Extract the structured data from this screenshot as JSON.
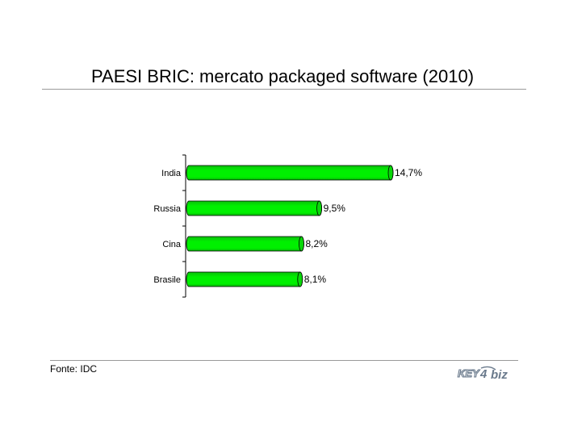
{
  "title": "PAESI BRIC: mercato packaged software (2010)",
  "source": "Fonte: IDC",
  "logo_text": "KEY4biz",
  "colors": {
    "bar_fill": "#00f000",
    "bar_outline": "#000000",
    "rule": "#9a9a9a",
    "logo": "#6a7a8c"
  },
  "chart_data": {
    "type": "bar",
    "orientation": "horizontal",
    "style": "3d-cylinder",
    "categories": [
      "India",
      "Russia",
      "Cina",
      "Brasile"
    ],
    "values": [
      14.7,
      9.5,
      8.2,
      8.1
    ],
    "data_labels": [
      "14,7%",
      "9,5%",
      "8,2%",
      "8,1%"
    ],
    "unit": "%",
    "title": "PAESI BRIC: mercato packaged software (2010)",
    "xlabel": "",
    "ylabel": "",
    "xlim": [
      0,
      14.7
    ],
    "grid": false,
    "legend": "none"
  }
}
